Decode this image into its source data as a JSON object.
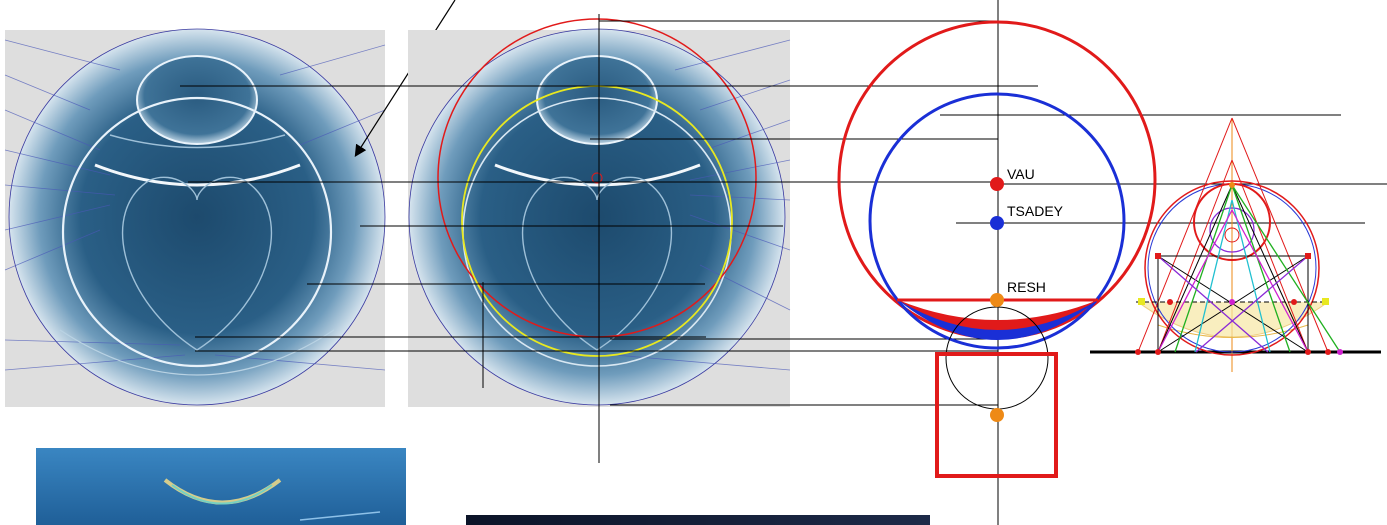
{
  "labels": {
    "vau": "VAU",
    "tsadey": "TSADEY",
    "resh": "RESH"
  },
  "colors": {
    "red": "#e11a1a",
    "blue": "#1a2fd6",
    "orange": "#ee8a16",
    "yellow": "#e8e820",
    "navy": "#1a2aa0",
    "sphere_dark": "#1c4a6e",
    "sphere_light": "#c9dbe8",
    "panel_gray": "#dedede",
    "line": "#000000"
  },
  "icons": {
    "pointer": "arrow-icon"
  }
}
